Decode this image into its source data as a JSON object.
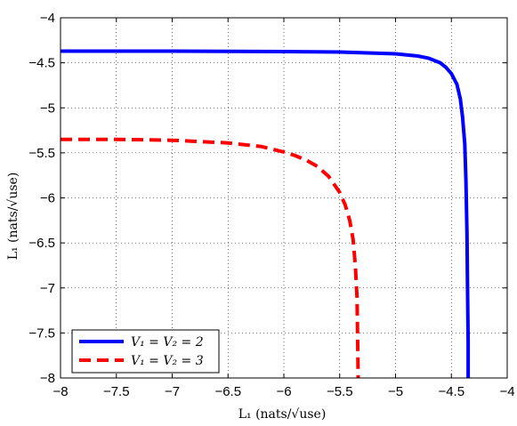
{
  "chart_data": {
    "type": "line",
    "title": "",
    "xlabel": "L₁ (nats/√use)",
    "ylabel": "L₁ (nats/√use)",
    "xlim": [
      -8,
      -4
    ],
    "ylim": [
      -8,
      -4
    ],
    "xticks": [
      "−8",
      "−7.5",
      "−7",
      "−6.5",
      "−6",
      "−5.5",
      "−5",
      "−4.5",
      "−4"
    ],
    "yticks": [
      "−4",
      "−4.5",
      "−5",
      "−5.5",
      "−6",
      "−6.5",
      "−7",
      "−7.5",
      "−8"
    ],
    "grid": true,
    "legend_position": "bottom-left",
    "series": [
      {
        "name": "V₁ = V₂ = 2",
        "color": "#0000ff",
        "style": "solid",
        "x": [
          -8.0,
          -7.5,
          -7.0,
          -6.5,
          -6.0,
          -5.5,
          -5.0,
          -4.8,
          -4.7,
          -4.6,
          -4.55,
          -4.5,
          -4.45,
          -4.42,
          -4.4,
          -4.38,
          -4.37,
          -4.36,
          -4.355,
          -4.35,
          -4.35
        ],
        "y": [
          -4.37,
          -4.37,
          -4.37,
          -4.372,
          -4.375,
          -4.38,
          -4.4,
          -4.425,
          -4.45,
          -4.5,
          -4.55,
          -4.62,
          -4.74,
          -4.9,
          -5.1,
          -5.4,
          -5.8,
          -6.4,
          -7.0,
          -7.6,
          -8.0
        ]
      },
      {
        "name": "V₁ = V₂ = 3",
        "color": "#ff0000",
        "style": "dashed",
        "x": [
          -8.0,
          -7.5,
          -7.0,
          -6.5,
          -6.2,
          -6.0,
          -5.9,
          -5.8,
          -5.7,
          -5.6,
          -5.5,
          -5.45,
          -5.41,
          -5.38,
          -5.36,
          -5.345,
          -5.34,
          -5.335
        ],
        "y": [
          -5.35,
          -5.35,
          -5.36,
          -5.39,
          -5.43,
          -5.49,
          -5.53,
          -5.58,
          -5.65,
          -5.76,
          -5.94,
          -6.08,
          -6.25,
          -6.46,
          -6.75,
          -7.1,
          -7.5,
          -8.0
        ]
      }
    ]
  }
}
